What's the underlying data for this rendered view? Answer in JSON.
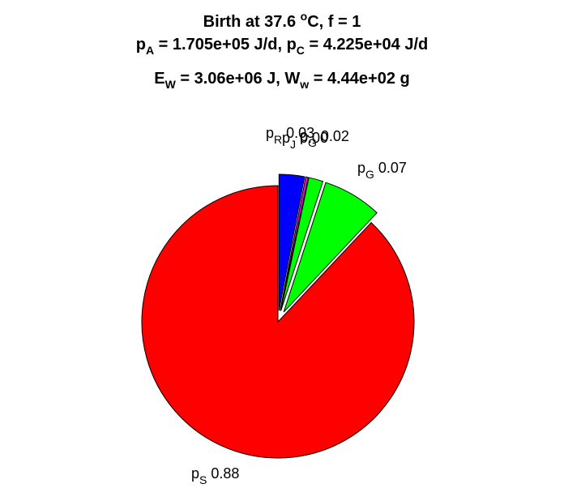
{
  "title": {
    "line1": {
      "prefix": "Birth at 37.6 ",
      "sup": "o",
      "suffix": "C, f = 1"
    },
    "line2": {
      "a_main": "p",
      "a_sub": "A",
      "a_rest": " = 1.705e+05 J/d, ",
      "c_main": "p",
      "c_sub": "C",
      "c_rest": " = 4.225e+04 J/d"
    },
    "line3": {
      "e_main": "E",
      "e_sub": "W",
      "e_rest": " = 3.06e+06 J, ",
      "w_main": "W",
      "w_sub": "w",
      "w_rest": " = 4.44e+02 g"
    }
  },
  "chart_data": {
    "type": "pie",
    "start_angle_deg": 90,
    "direction": "clockwise",
    "slices": [
      {
        "name": "p",
        "sub": "R",
        "value_label": "0.03",
        "value": 0.03,
        "color": "#0000ff",
        "exploded": true
      },
      {
        "name": "p",
        "sub": "J",
        "value_label": "0.00",
        "value": 0.003,
        "color": "#ff00ff",
        "exploded": true
      },
      {
        "name": "p",
        "sub": "G",
        "value_label": "0.02",
        "value": 0.017,
        "color": "#00ff00",
        "exploded": true
      },
      {
        "name": "p",
        "sub": "G",
        "value_label": "0.07",
        "value": 0.07,
        "color": "#00ff00",
        "exploded": true
      },
      {
        "name": "p",
        "sub": "S",
        "value_label": "0.88",
        "value": 0.88,
        "color": "#ff0000",
        "exploded": false
      }
    ]
  }
}
